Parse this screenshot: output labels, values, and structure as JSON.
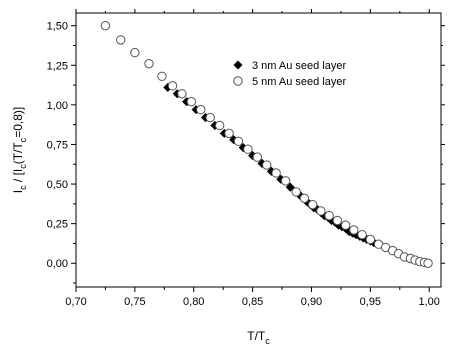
{
  "chart_data": {
    "type": "scatter",
    "x_axis": {
      "label_main": "T/T",
      "label_sub": "c",
      "lim": [
        0.7,
        1.01
      ],
      "ticks": [
        0.7,
        0.75,
        0.8,
        0.85,
        0.9,
        0.95,
        1.0
      ],
      "tick_labels": [
        "0,70",
        "0,75",
        "0,80",
        "0,85",
        "0,90",
        "0,95",
        "1,00"
      ]
    },
    "y_axis": {
      "label_parts": [
        {
          "text": "I",
          "sub": false
        },
        {
          "text": "c",
          "sub": true
        },
        {
          "text": " / [I",
          "sub": false
        },
        {
          "text": "c",
          "sub": true
        },
        {
          "text": "(T/T",
          "sub": false
        },
        {
          "text": "c",
          "sub": true
        },
        {
          "text": "=0,8)]",
          "sub": false
        }
      ],
      "lim": [
        -0.15,
        1.58
      ],
      "ticks": [
        0.0,
        0.25,
        0.5,
        0.75,
        1.0,
        1.25,
        1.5
      ],
      "tick_labels": [
        "0,00",
        "0,25",
        "0,50",
        "0,75",
        "1,00",
        "1,25",
        "1,50"
      ]
    },
    "legend": {
      "placement": "top-right"
    },
    "grid": false,
    "series": [
      {
        "name": "3 nm Au seed layer",
        "marker": "diamond-filled",
        "color": "#000000",
        "x": [
          0.778,
          0.786,
          0.794,
          0.802,
          0.81,
          0.818,
          0.826,
          0.834,
          0.842,
          0.85,
          0.858,
          0.866,
          0.874,
          0.882,
          0.89,
          0.893,
          0.896,
          0.899,
          0.902,
          0.905,
          0.908,
          0.911,
          0.914,
          0.917,
          0.92,
          0.923,
          0.926,
          0.929,
          0.932,
          0.935,
          0.938,
          0.941,
          0.944,
          0.947,
          0.95,
          0.953
        ],
        "y": [
          1.11,
          1.07,
          1.02,
          0.97,
          0.92,
          0.87,
          0.82,
          0.78,
          0.73,
          0.68,
          0.63,
          0.58,
          0.53,
          0.48,
          0.43,
          0.41,
          0.39,
          0.37,
          0.35,
          0.34,
          0.32,
          0.3,
          0.29,
          0.27,
          0.26,
          0.24,
          0.23,
          0.22,
          0.2,
          0.19,
          0.18,
          0.17,
          0.16,
          0.15,
          0.14,
          0.13
        ]
      },
      {
        "name": "5 nm Au seed layer",
        "marker": "circle-open",
        "color": "#000000",
        "x": [
          0.725,
          0.738,
          0.75,
          0.762,
          0.773,
          0.782,
          0.79,
          0.798,
          0.806,
          0.814,
          0.822,
          0.83,
          0.838,
          0.846,
          0.854,
          0.862,
          0.87,
          0.878,
          0.887,
          0.894,
          0.901,
          0.908,
          0.915,
          0.922,
          0.929,
          0.936,
          0.943,
          0.95,
          0.957,
          0.963,
          0.969,
          0.974,
          0.979,
          0.984,
          0.988,
          0.992,
          0.996,
          0.999
        ],
        "y": [
          1.5,
          1.41,
          1.33,
          1.26,
          1.18,
          1.12,
          1.07,
          1.02,
          0.97,
          0.92,
          0.87,
          0.82,
          0.77,
          0.72,
          0.67,
          0.62,
          0.57,
          0.52,
          0.45,
          0.41,
          0.37,
          0.33,
          0.3,
          0.27,
          0.24,
          0.21,
          0.18,
          0.15,
          0.12,
          0.1,
          0.08,
          0.06,
          0.04,
          0.03,
          0.02,
          0.01,
          0.005,
          0.0
        ]
      }
    ]
  }
}
